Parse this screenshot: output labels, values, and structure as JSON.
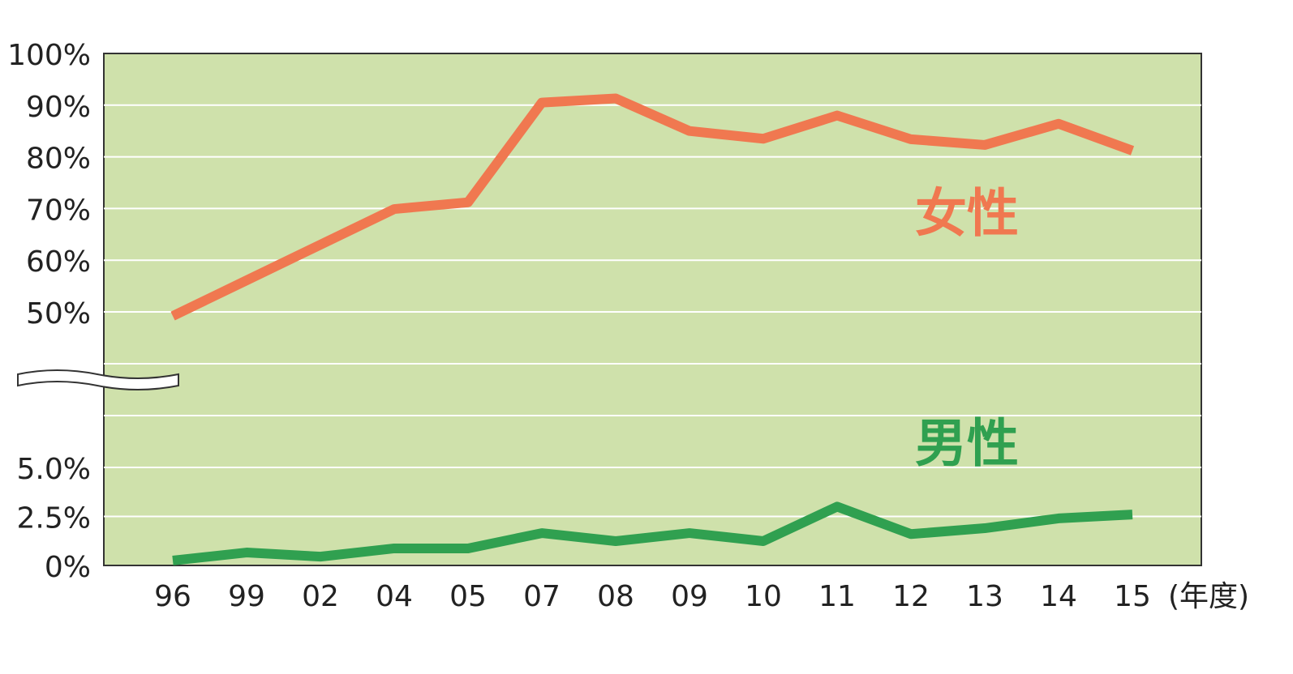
{
  "chart_data": {
    "type": "line",
    "categories": [
      "96",
      "99",
      "02",
      "04",
      "05",
      "07",
      "08",
      "09",
      "10",
      "11",
      "12",
      "13",
      "14",
      "15"
    ],
    "series": [
      {
        "name": "女性",
        "color": "#f07850",
        "values": [
          49.2,
          56.1,
          63.0,
          69.9,
          71.2,
          90.5,
          91.3,
          85.0,
          83.5,
          88.0,
          83.4,
          82.3,
          86.4,
          81.2
        ]
      },
      {
        "name": "男性",
        "color": "#30a050",
        "axis": "y2",
        "values": [
          0.25,
          0.66,
          0.45,
          0.87,
          0.87,
          1.65,
          1.24,
          1.65,
          1.24,
          3.0,
          1.6,
          1.9,
          2.4,
          2.6
        ]
      }
    ],
    "ylim": [
      50,
      100
    ],
    "yticks": [
      {
        "value": 50,
        "label": "50%"
      },
      {
        "value": 60,
        "label": "60%"
      },
      {
        "value": 70,
        "label": "70%"
      },
      {
        "value": 80,
        "label": "80%"
      },
      {
        "value": 90,
        "label": "90%"
      },
      {
        "value": 100,
        "label": "100%"
      }
    ],
    "y2lim": [
      0,
      5
    ],
    "y2ticks": [
      {
        "value": 0,
        "label": "0%"
      },
      {
        "value": 2.5,
        "label": "2.5%"
      },
      {
        "value": 5,
        "label": "5.0%"
      }
    ],
    "x_unit": "(年度)",
    "grid": true,
    "background": "#cfe1ab"
  }
}
